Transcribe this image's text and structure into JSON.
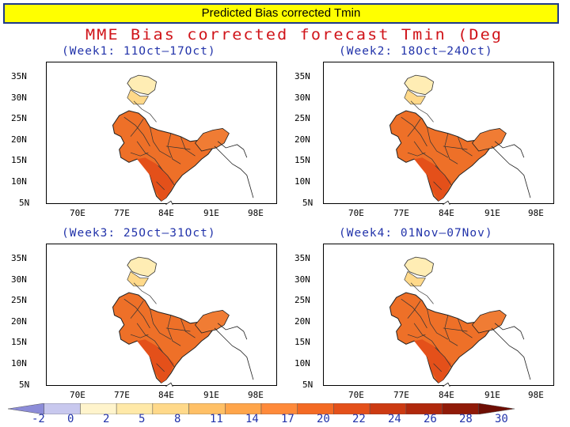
{
  "slide_title": "Predicted Bias corrected Tmin",
  "figure_title": "MME Bias corrected forecast Tmin (Deg",
  "panels": [
    {
      "title": "(Week1: 11Oct—17Oct)"
    },
    {
      "title": "(Week2: 18Oct—24Oct)"
    },
    {
      "title": "(Week3: 25Oct—31Oct)"
    },
    {
      "title": "(Week4: 01Nov—07Nov)"
    }
  ],
  "axes": {
    "lat_labels": [
      "35N",
      "30N",
      "25N",
      "20N",
      "15N",
      "10N",
      "5N"
    ],
    "lon_labels": [
      "70E",
      "77E",
      "84E",
      "91E",
      "98E"
    ]
  },
  "colorbar": {
    "labels": [
      "-2",
      "0",
      "2",
      "5",
      "8",
      "11",
      "14",
      "17",
      "20",
      "22",
      "24",
      "26",
      "28",
      "30"
    ],
    "colors": [
      "#8c8cd8",
      "#c8c8ee",
      "#fff4cc",
      "#ffe9a8",
      "#ffd98a",
      "#ffc066",
      "#ffa54a",
      "#ff8a3a",
      "#f46a24",
      "#e4501a",
      "#cc3a12",
      "#b0280c",
      "#901a08",
      "#6e0e04"
    ]
  },
  "map_colors": {
    "north": "#ffedb4",
    "kashmir": "#ffd98a",
    "main": "#ee7028",
    "south": "#e4501a",
    "ne": "#f07c34"
  }
}
